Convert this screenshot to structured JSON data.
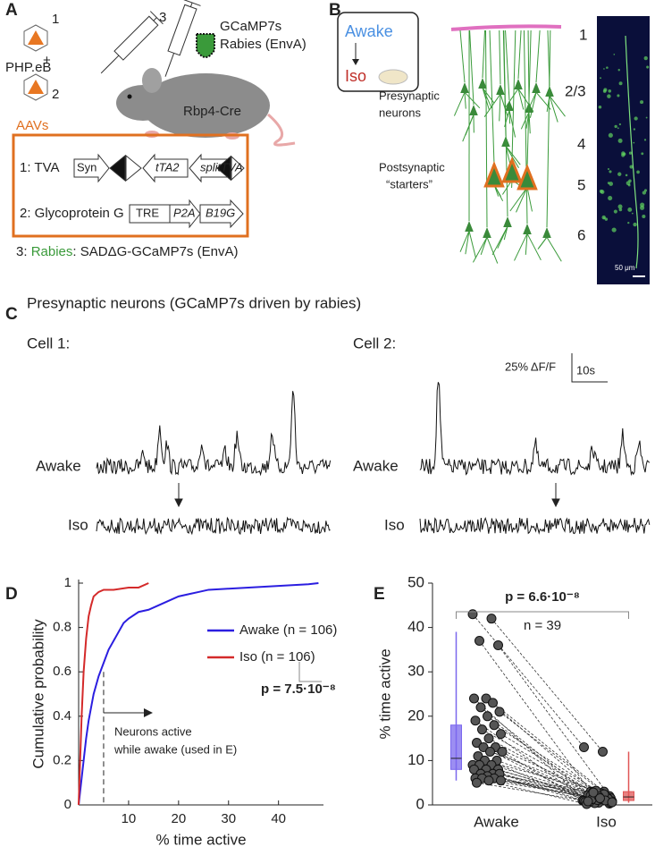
{
  "panel_labels": [
    "A",
    "B",
    "C",
    "D",
    "E"
  ],
  "panel_a": {
    "capsid_1": "1",
    "capsid_2": "2",
    "plus": "+",
    "serotype": "PHP.eB",
    "syringe_3": "3",
    "virus": "GCaMP7s",
    "virus_2": "Rabies (EnvA)",
    "mouse": "Rbp4-Cre",
    "box_title": "AAVs",
    "construct_1": {
      "label": "1: TVA",
      "elements": [
        "Syn",
        "tTA2",
        "splitTVA"
      ]
    },
    "construct_2": {
      "label": "2: Glycoprotein G",
      "elements": [
        "TRE",
        "P2A",
        "B19G"
      ]
    },
    "rabies": [
      "3: ",
      "Rabies",
      ": SADΔG-GCaMP7s (EnvA)"
    ]
  },
  "panel_b": {
    "inset": [
      "Awake",
      "Iso"
    ],
    "presynaptic": [
      "Presynaptic",
      "neurons"
    ],
    "postsynaptic": [
      "Postsynaptic",
      "“starters”"
    ],
    "layers": [
      "1",
      "2/3",
      "4",
      "5",
      "6"
    ],
    "scale_bar": "50 μm"
  },
  "panel_c": {
    "title": "Presynaptic neurons (GCaMP7s driven by rabies)",
    "cells": [
      "Cell 1:",
      "Cell 2:"
    ],
    "conditions": [
      "Awake",
      "Iso"
    ],
    "scale_y": "25% ΔF/F",
    "scale_x": "10s"
  },
  "chart_data": [
    {
      "type": "line",
      "x_label": "% time active",
      "y_label": "Cumulative probability",
      "xlim": [
        0,
        49
      ],
      "ylim": [
        0,
        1
      ],
      "xticks": [
        10,
        20,
        30,
        40
      ],
      "yticks": [
        0,
        0.2,
        0.4,
        0.6,
        0.8,
        1
      ],
      "series": [
        {
          "name": "Awake (n = 106)",
          "color": "#2b1ee0",
          "x": [
            0,
            0.5,
            1,
            1.5,
            2,
            3,
            4,
            5,
            6,
            7,
            8,
            9,
            10,
            12,
            14,
            16,
            18,
            20,
            22,
            24,
            26,
            30,
            34,
            38,
            42,
            46,
            48
          ],
          "values": [
            0,
            0.1,
            0.2,
            0.3,
            0.38,
            0.5,
            0.58,
            0.64,
            0.7,
            0.74,
            0.78,
            0.82,
            0.84,
            0.87,
            0.88,
            0.9,
            0.92,
            0.94,
            0.95,
            0.96,
            0.97,
            0.975,
            0.98,
            0.985,
            0.99,
            0.995,
            1
          ]
        },
        {
          "name": "Iso (n = 106)",
          "color": "#d42a2a",
          "x": [
            0,
            0.3,
            0.6,
            1,
            1.5,
            2,
            2.5,
            3,
            4,
            5,
            7,
            10,
            12,
            14
          ],
          "values": [
            0,
            0.2,
            0.4,
            0.6,
            0.75,
            0.85,
            0.9,
            0.94,
            0.96,
            0.97,
            0.97,
            0.98,
            0.98,
            1
          ]
        }
      ],
      "threshold": 5,
      "annotation": [
        "Neurons active",
        "while awake (used in E)"
      ],
      "p_value": "p = 7.5·10⁻⁸"
    },
    {
      "type": "box",
      "y_label": "% time active",
      "categories": [
        "Awake",
        "Iso"
      ],
      "ylim": [
        0,
        50
      ],
      "yticks": [
        0,
        10,
        20,
        30,
        40,
        50
      ],
      "boxes": [
        {
          "color": "#7b68ee",
          "whisker_low": 5.5,
          "q1": 8,
          "median": 10.5,
          "q3": 18,
          "whisker_high": 39
        },
        {
          "color": "#e05555",
          "whisker_low": 0.5,
          "q1": 1,
          "median": 1.8,
          "q3": 3,
          "whisker_high": 12
        }
      ],
      "point_color": "#555555",
      "paired_values": [
        [
          43,
          42,
          37,
          36,
          24,
          24,
          23,
          22,
          21,
          20,
          19,
          18,
          17,
          16,
          15,
          14,
          13,
          13,
          12,
          12,
          11,
          10,
          10,
          9,
          9,
          9,
          8,
          8,
          8,
          7,
          7,
          7,
          6.5,
          6,
          6,
          6,
          5.5,
          5.5,
          5
        ],
        [
          13,
          12,
          3,
          2,
          2.5,
          1,
          3,
          2,
          1.5,
          0.5,
          1,
          2,
          3,
          0.8,
          1.2,
          2.2,
          1.8,
          0.4,
          1,
          2.6,
          0.6,
          1.4,
          3.2,
          0.9,
          1.6,
          2.1,
          0.3,
          1.1,
          0.7,
          2.4,
          1.3,
          0.5,
          1.9,
          0.2,
          1,
          2.8,
          0.6,
          1.5,
          0.8
        ]
      ],
      "p_value": "p = 6.6·10⁻⁸",
      "n_label": "n = 39"
    }
  ]
}
